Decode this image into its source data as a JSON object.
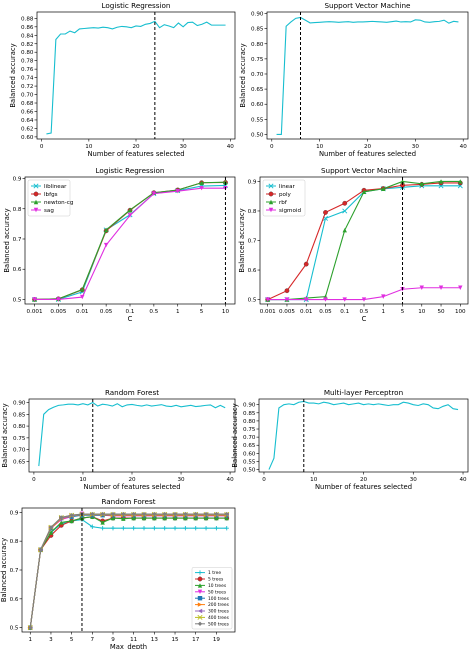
{
  "colors": {
    "cyan": "#17becf",
    "red": "#d62728",
    "green": "#2ca02c",
    "magenta": "#e02ee0",
    "blue": "#1f77b4",
    "orange": "#ff7f0e",
    "purple": "#9467bd",
    "brown": "#8c564b",
    "pink": "#e377c2",
    "gray": "#7f7f7f",
    "olive": "#bcbd22",
    "black": "#000000"
  },
  "chart_data": [
    {
      "id": "lr_features",
      "type": "line",
      "title": "Logistic Regression",
      "xlabel": "Number of features selected",
      "ylabel": "Balanced accuracy",
      "xlim": [
        -1,
        41
      ],
      "ylim": [
        0.595,
        0.895
      ],
      "xticks": [
        0,
        10,
        20,
        30,
        40
      ],
      "xtick_labels": [
        "0",
        "10",
        "20",
        "30",
        "40"
      ],
      "yticks": [
        0.6,
        0.62,
        0.64,
        0.66,
        0.68,
        0.7,
        0.72,
        0.74,
        0.76,
        0.78,
        0.8,
        0.82,
        0.84,
        0.86,
        0.88
      ],
      "ytick_labels": [
        "0.60",
        "0.62",
        "0.64",
        "0.66",
        "0.68",
        "0.70",
        "0.72",
        "0.74",
        "0.76",
        "0.78",
        "0.80",
        "0.82",
        "0.84",
        "0.86",
        "0.88"
      ],
      "vline": 24,
      "series": [
        {
          "color": "#17becf",
          "x": [
            1,
            2,
            3,
            4,
            5,
            6,
            7,
            8,
            9,
            10,
            11,
            12,
            13,
            14,
            15,
            16,
            17,
            18,
            19,
            20,
            21,
            22,
            23,
            24,
            25,
            26,
            27,
            28,
            29,
            30,
            31,
            32,
            33,
            34,
            35,
            36,
            37,
            38,
            39
          ],
          "y": [
            0.607,
            0.609,
            0.83,
            0.843,
            0.843,
            0.85,
            0.846,
            0.855,
            0.856,
            0.857,
            0.858,
            0.857,
            0.859,
            0.858,
            0.855,
            0.859,
            0.861,
            0.86,
            0.858,
            0.862,
            0.861,
            0.866,
            0.868,
            0.873,
            0.858,
            0.865,
            0.862,
            0.858,
            0.869,
            0.86,
            0.87,
            0.871,
            0.863,
            0.866,
            0.871,
            0.864,
            0.864,
            0.864,
            0.864
          ]
        }
      ]
    },
    {
      "id": "svm_features",
      "type": "line",
      "title": "Support Vector Machine",
      "xlabel": "Number of features selected",
      "ylabel": "Balanced accuracy",
      "xlim": [
        -1,
        41
      ],
      "ylim": [
        0.485,
        0.905
      ],
      "xticks": [
        0,
        10,
        20,
        30,
        40
      ],
      "xtick_labels": [
        "0",
        "10",
        "20",
        "30",
        "40"
      ],
      "yticks": [
        0.5,
        0.55,
        0.6,
        0.65,
        0.7,
        0.75,
        0.8,
        0.85,
        0.9
      ],
      "ytick_labels": [
        "0.50",
        "0.55",
        "0.60",
        "0.65",
        "0.70",
        "0.75",
        "0.80",
        "0.85",
        "0.90"
      ],
      "vline": 6,
      "series": [
        {
          "color": "#17becf",
          "x": [
            1,
            2,
            3,
            4,
            5,
            6,
            7,
            8,
            9,
            10,
            11,
            12,
            13,
            14,
            15,
            16,
            17,
            18,
            19,
            20,
            21,
            22,
            23,
            24,
            25,
            26,
            27,
            28,
            29,
            30,
            31,
            32,
            33,
            34,
            35,
            36,
            37,
            38,
            39
          ],
          "y": [
            0.5,
            0.5,
            0.858,
            0.872,
            0.884,
            0.887,
            0.878,
            0.869,
            0.87,
            0.871,
            0.872,
            0.873,
            0.872,
            0.871,
            0.872,
            0.873,
            0.871,
            0.872,
            0.872,
            0.873,
            0.874,
            0.873,
            0.872,
            0.871,
            0.873,
            0.875,
            0.872,
            0.873,
            0.872,
            0.879,
            0.878,
            0.872,
            0.871,
            0.873,
            0.874,
            0.878,
            0.868,
            0.874,
            0.872
          ]
        }
      ]
    },
    {
      "id": "lr_c",
      "type": "line",
      "title": "Logistic Regression",
      "xlabel": "C",
      "ylabel": "Balanced accuracy",
      "categories": [
        "0.001",
        "0.005",
        "0.01",
        "0.05",
        "0.1",
        "0.5",
        "1",
        "5",
        "10"
      ],
      "ylim": [
        0.485,
        0.905
      ],
      "yticks": [
        0.5,
        0.6,
        0.7,
        0.8,
        0.9
      ],
      "ytick_labels": [
        "0.5",
        "0.6",
        "0.7",
        "0.8",
        "0.9"
      ],
      "vline_index": 8,
      "legend": "upper-left",
      "series": [
        {
          "name": "liblinear",
          "color": "#17becf",
          "marker": "x",
          "values": [
            0.5,
            0.5,
            0.525,
            0.73,
            0.78,
            0.85,
            0.86,
            0.875,
            0.877
          ]
        },
        {
          "name": "lbfgs",
          "color": "#d62728",
          "marker": "o",
          "values": [
            0.5,
            0.502,
            0.532,
            0.727,
            0.795,
            0.853,
            0.862,
            0.886,
            0.887
          ]
        },
        {
          "name": "newton-cg",
          "color": "#2ca02c",
          "marker": "^",
          "values": [
            0.5,
            0.502,
            0.533,
            0.73,
            0.796,
            0.853,
            0.862,
            0.886,
            0.888
          ]
        },
        {
          "name": "sag",
          "color": "#e02ee0",
          "marker": "v",
          "values": [
            0.5,
            0.5,
            0.508,
            0.68,
            0.778,
            0.85,
            0.858,
            0.868,
            0.868
          ]
        }
      ]
    },
    {
      "id": "svm_c",
      "type": "line",
      "title": "Support Vector Machine",
      "xlabel": "C",
      "ylabel": "Balanced accuracy",
      "categories": [
        "0.001",
        "0.005",
        "0.01",
        "0.05",
        "0.1",
        "0.5",
        "1",
        "5",
        "10",
        "50",
        "100"
      ],
      "ylim": [
        0.485,
        0.915
      ],
      "yticks": [
        0.5,
        0.6,
        0.7,
        0.8,
        0.9
      ],
      "ytick_labels": [
        "0.5",
        "0.6",
        "0.7",
        "0.8",
        "0.9"
      ],
      "vline_index": 7,
      "legend": "upper-left",
      "series": [
        {
          "name": "linear",
          "color": "#17becf",
          "marker": "x",
          "values": [
            0.5,
            0.5,
            0.5,
            0.775,
            0.8,
            0.865,
            0.875,
            0.88,
            0.885,
            0.885,
            0.885
          ]
        },
        {
          "name": "poly",
          "color": "#d62728",
          "marker": "o",
          "values": [
            0.5,
            0.53,
            0.62,
            0.795,
            0.826,
            0.87,
            0.876,
            0.887,
            0.89,
            0.895,
            0.895
          ]
        },
        {
          "name": "rbf",
          "color": "#2ca02c",
          "marker": "^",
          "values": [
            0.5,
            0.5,
            0.505,
            0.51,
            0.735,
            0.865,
            0.875,
            0.9,
            0.892,
            0.9,
            0.9
          ]
        },
        {
          "name": "sigmoid",
          "color": "#e02ee0",
          "marker": "v",
          "values": [
            0.5,
            0.5,
            0.5,
            0.5,
            0.5,
            0.5,
            0.51,
            0.535,
            0.54,
            0.54,
            0.54
          ]
        }
      ]
    },
    {
      "id": "rf_features",
      "type": "line",
      "title": "Random Forest",
      "xlabel": "Number of features selected",
      "ylabel": "Balanced accuracy",
      "xlim": [
        -1,
        41
      ],
      "ylim": [
        0.605,
        0.915
      ],
      "xticks": [
        0,
        10,
        20,
        30,
        40
      ],
      "xtick_labels": [
        "0",
        "10",
        "20",
        "30",
        "40"
      ],
      "yticks": [
        0.65,
        0.7,
        0.75,
        0.8,
        0.85,
        0.9
      ],
      "ytick_labels": [
        "0.65",
        "0.70",
        "0.75",
        "0.80",
        "0.85",
        "0.90"
      ],
      "vline": 12,
      "series": [
        {
          "color": "#17becf",
          "x": [
            1,
            2,
            3,
            4,
            5,
            6,
            7,
            8,
            9,
            10,
            11,
            12,
            13,
            14,
            15,
            16,
            17,
            18,
            19,
            20,
            21,
            22,
            23,
            24,
            25,
            26,
            27,
            28,
            29,
            30,
            31,
            32,
            33,
            34,
            35,
            36,
            37,
            38,
            39
          ],
          "y": [
            0.63,
            0.85,
            0.87,
            0.88,
            0.888,
            0.89,
            0.893,
            0.893,
            0.89,
            0.895,
            0.89,
            0.9,
            0.885,
            0.893,
            0.89,
            0.885,
            0.895,
            0.882,
            0.89,
            0.892,
            0.888,
            0.885,
            0.89,
            0.885,
            0.888,
            0.891,
            0.885,
            0.883,
            0.888,
            0.882,
            0.885,
            0.888,
            0.883,
            0.885,
            0.888,
            0.89,
            0.878,
            0.888,
            0.878
          ]
        }
      ]
    },
    {
      "id": "mlp_features",
      "type": "line",
      "title": "Multi-layer Perceptron",
      "xlabel": "Number of features selected",
      "ylabel": "Balanced accuracy",
      "xlim": [
        -1,
        41
      ],
      "ylim": [
        0.485,
        0.935
      ],
      "xticks": [
        0,
        10,
        20,
        30,
        40
      ],
      "xtick_labels": [
        "0",
        "10",
        "20",
        "30",
        "40"
      ],
      "yticks": [
        0.5,
        0.55,
        0.6,
        0.65,
        0.7,
        0.75,
        0.8,
        0.85,
        0.9
      ],
      "ytick_labels": [
        "0.50",
        "0.55",
        "0.60",
        "0.65",
        "0.70",
        "0.75",
        "0.80",
        "0.85",
        "0.90"
      ],
      "vline": 8,
      "series": [
        {
          "color": "#17becf",
          "x": [
            1,
            2,
            3,
            4,
            5,
            6,
            7,
            8,
            9,
            10,
            11,
            12,
            13,
            14,
            15,
            16,
            17,
            18,
            19,
            20,
            21,
            22,
            23,
            24,
            25,
            26,
            27,
            28,
            29,
            30,
            31,
            32,
            33,
            34,
            35,
            36,
            37,
            38,
            39
          ],
          "y": [
            0.5,
            0.57,
            0.88,
            0.9,
            0.905,
            0.9,
            0.915,
            0.92,
            0.91,
            0.91,
            0.905,
            0.915,
            0.91,
            0.9,
            0.905,
            0.91,
            0.9,
            0.905,
            0.91,
            0.9,
            0.905,
            0.9,
            0.905,
            0.9,
            0.895,
            0.9,
            0.9,
            0.915,
            0.91,
            0.9,
            0.895,
            0.905,
            0.9,
            0.88,
            0.875,
            0.89,
            0.9,
            0.875,
            0.87
          ]
        }
      ]
    },
    {
      "id": "rf_depth",
      "type": "line",
      "title": "Random Forest",
      "xlabel": "Max_depth",
      "ylabel": "Balanced accuracy",
      "xlim": [
        0.2,
        20.8
      ],
      "ylim": [
        0.485,
        0.915
      ],
      "xticks": [
        1,
        3,
        5,
        7,
        9,
        11,
        13,
        15,
        17,
        19
      ],
      "xtick_labels": [
        "1",
        "3",
        "5",
        "7",
        "9",
        "11",
        "13",
        "15",
        "17",
        "19"
      ],
      "yticks": [
        0.5,
        0.6,
        0.7,
        0.8,
        0.9
      ],
      "ytick_labels": [
        "0.5",
        "0.6",
        "0.7",
        "0.8",
        "0.9"
      ],
      "vline": 6,
      "legend": "lower-right",
      "x": [
        1,
        2,
        3,
        4,
        5,
        6,
        7,
        8,
        9,
        10,
        11,
        12,
        13,
        14,
        15,
        16,
        17,
        18,
        19,
        20
      ],
      "series": [
        {
          "name": "1 tree",
          "color": "#17becf",
          "marker": "+",
          "values": [
            0.5,
            0.77,
            0.83,
            0.86,
            0.87,
            0.875,
            0.85,
            0.845,
            0.845,
            0.845,
            0.845,
            0.845,
            0.845,
            0.845,
            0.845,
            0.845,
            0.845,
            0.845,
            0.845,
            0.845
          ]
        },
        {
          "name": "5 trees",
          "color": "#d62728",
          "marker": "o",
          "values": [
            0.5,
            0.77,
            0.82,
            0.855,
            0.87,
            0.88,
            0.885,
            0.87,
            0.88,
            0.88,
            0.88,
            0.88,
            0.88,
            0.88,
            0.88,
            0.88,
            0.88,
            0.88,
            0.88,
            0.88
          ]
        },
        {
          "name": "10 trees",
          "color": "#2ca02c",
          "marker": "^",
          "values": [
            0.5,
            0.77,
            0.83,
            0.865,
            0.87,
            0.88,
            0.885,
            0.865,
            0.88,
            0.878,
            0.88,
            0.88,
            0.88,
            0.88,
            0.88,
            0.88,
            0.88,
            0.88,
            0.88,
            0.88
          ]
        },
        {
          "name": "50 trees",
          "color": "#e02ee0",
          "marker": "v",
          "values": [
            0.5,
            0.77,
            0.845,
            0.875,
            0.885,
            0.895,
            0.89,
            0.89,
            0.888,
            0.888,
            0.888,
            0.888,
            0.888,
            0.888,
            0.888,
            0.888,
            0.888,
            0.888,
            0.888,
            0.888
          ]
        },
        {
          "name": "100 trees",
          "color": "#1f77b4",
          "marker": "s",
          "values": [
            0.5,
            0.77,
            0.845,
            0.88,
            0.885,
            0.89,
            0.89,
            0.89,
            0.89,
            0.89,
            0.89,
            0.89,
            0.89,
            0.89,
            0.89,
            0.89,
            0.89,
            0.89,
            0.89,
            0.89
          ]
        },
        {
          "name": "200 trees",
          "color": "#ff7f0e",
          "marker": ">",
          "values": [
            0.5,
            0.77,
            0.845,
            0.878,
            0.888,
            0.892,
            0.892,
            0.892,
            0.89,
            0.89,
            0.89,
            0.89,
            0.89,
            0.89,
            0.89,
            0.89,
            0.89,
            0.89,
            0.89,
            0.89
          ]
        },
        {
          "name": "300 trees",
          "color": "#9467bd",
          "marker": "<",
          "values": [
            0.5,
            0.77,
            0.848,
            0.88,
            0.888,
            0.893,
            0.893,
            0.893,
            0.892,
            0.892,
            0.892,
            0.892,
            0.892,
            0.892,
            0.892,
            0.892,
            0.892,
            0.892,
            0.892,
            0.892
          ]
        },
        {
          "name": "400 trees",
          "color": "#bcbd22",
          "marker": "x",
          "values": [
            0.5,
            0.77,
            0.848,
            0.882,
            0.89,
            0.893,
            0.893,
            0.893,
            0.893,
            0.893,
            0.893,
            0.893,
            0.893,
            0.893,
            0.893,
            0.893,
            0.893,
            0.893,
            0.893,
            0.893
          ]
        },
        {
          "name": "500 trees",
          "color": "#7f7f7f",
          "marker": "D",
          "values": [
            0.5,
            0.77,
            0.848,
            0.882,
            0.89,
            0.894,
            0.894,
            0.894,
            0.894,
            0.894,
            0.894,
            0.894,
            0.894,
            0.894,
            0.894,
            0.894,
            0.894,
            0.894,
            0.894,
            0.894
          ]
        }
      ]
    }
  ]
}
